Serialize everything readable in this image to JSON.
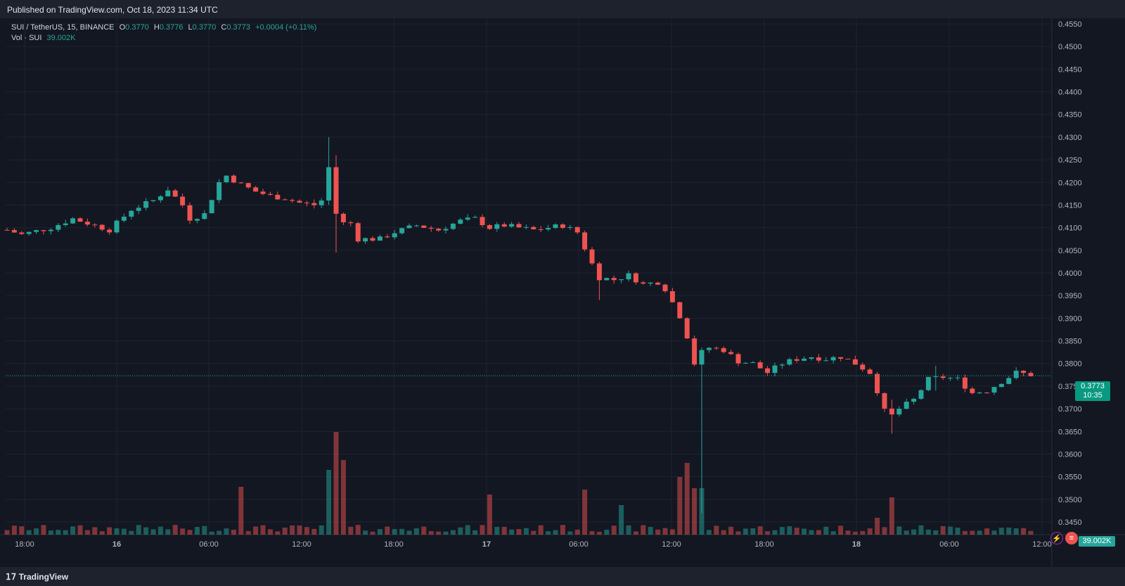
{
  "header": {
    "published": "Published on TradingView.com, Oct 18, 2023 11:34 UTC"
  },
  "legend": {
    "symbol": "SUI / TetherUS, 15, BINANCE",
    "o_label": "O",
    "o": "0.3770",
    "h_label": "H",
    "h": "0.3776",
    "l_label": "L",
    "l": "0.3770",
    "c_label": "C",
    "c": "0.3773",
    "change": "+0.0004 (+0.11%)",
    "vol_label": "Vol · SUI",
    "vol_value": "39.002K"
  },
  "price_tag": {
    "price": "0.3773",
    "countdown": "10:35"
  },
  "vol_tag": "39.002K",
  "footer": {
    "brand": "TradingView"
  },
  "icons": {
    "flash": "lightning-icon",
    "flag": "us-flag-icon"
  },
  "colors": {
    "up": "#26a69a",
    "down": "#ef5350",
    "background": "#131722",
    "grid": "#1f2330"
  },
  "chart_data": {
    "type": "candlestick",
    "interval": "15",
    "symbol": "SUI / TetherUS",
    "exchange": "BINANCE",
    "last_price": 0.3773,
    "y_ticks": [
      "0.4550",
      "0.4500",
      "0.4450",
      "0.4400",
      "0.4350",
      "0.4300",
      "0.4250",
      "0.4200",
      "0.4150",
      "0.4100",
      "0.4050",
      "0.4000",
      "0.3950",
      "0.3900",
      "0.3850",
      "0.3800",
      "0.3750",
      "0.3700",
      "0.3650",
      "0.3600",
      "0.3550",
      "0.3500",
      "0.3450"
    ],
    "y_range": [
      0.3445,
      0.456
    ],
    "x_ticks": [
      "18:00",
      "16",
      "06:00",
      "12:00",
      "18:00",
      "17",
      "06:00",
      "12:00",
      "18:00",
      "18",
      "06:00",
      "12:00"
    ],
    "close_path": [
      {
        "t": 0,
        "p": 0.4095
      },
      {
        "t": 2,
        "p": 0.4085
      },
      {
        "t": 6,
        "p": 0.41
      },
      {
        "t": 9,
        "p": 0.412
      },
      {
        "t": 12,
        "p": 0.4105
      },
      {
        "t": 14,
        "p": 0.4095
      },
      {
        "t": 17,
        "p": 0.414
      },
      {
        "t": 20,
        "p": 0.416
      },
      {
        "t": 22,
        "p": 0.4185
      },
      {
        "t": 24,
        "p": 0.415
      },
      {
        "t": 25,
        "p": 0.412
      },
      {
        "t": 27,
        "p": 0.413
      },
      {
        "t": 29,
        "p": 0.42
      },
      {
        "t": 30,
        "p": 0.4215
      },
      {
        "t": 32,
        "p": 0.4195
      },
      {
        "t": 34,
        "p": 0.418
      },
      {
        "t": 36,
        "p": 0.417
      },
      {
        "t": 38,
        "p": 0.4165
      },
      {
        "t": 40,
        "p": 0.4155
      },
      {
        "t": 42,
        "p": 0.415
      },
      {
        "t": 43,
        "p": 0.416
      },
      {
        "t": 44.3,
        "p": 0.4255
      },
      {
        "t": 44.8,
        "p": 0.414
      },
      {
        "t": 45.5,
        "p": 0.411
      },
      {
        "t": 47,
        "p": 0.411
      },
      {
        "t": 48,
        "p": 0.4075
      },
      {
        "t": 51,
        "p": 0.4075
      },
      {
        "t": 53,
        "p": 0.409
      },
      {
        "t": 56,
        "p": 0.4105
      },
      {
        "t": 59,
        "p": 0.4095
      },
      {
        "t": 62,
        "p": 0.4115
      },
      {
        "t": 64,
        "p": 0.412
      },
      {
        "t": 66,
        "p": 0.41
      },
      {
        "t": 68,
        "p": 0.4105
      },
      {
        "t": 70,
        "p": 0.41
      },
      {
        "t": 72,
        "p": 0.4095
      },
      {
        "t": 74,
        "p": 0.41
      },
      {
        "t": 76,
        "p": 0.4105
      },
      {
        "t": 78,
        "p": 0.409
      },
      {
        "t": 79,
        "p": 0.4055
      },
      {
        "t": 80,
        "p": 0.402
      },
      {
        "t": 81,
        "p": 0.399
      },
      {
        "t": 83,
        "p": 0.3985
      },
      {
        "t": 85,
        "p": 0.3995
      },
      {
        "t": 87,
        "p": 0.3975
      },
      {
        "t": 89,
        "p": 0.398
      },
      {
        "t": 90,
        "p": 0.3965
      },
      {
        "t": 91,
        "p": 0.3935
      },
      {
        "t": 92,
        "p": 0.3905
      },
      {
        "t": 93,
        "p": 0.386
      },
      {
        "t": 94,
        "p": 0.38
      },
      {
        "t": 95,
        "p": 0.3825
      },
      {
        "t": 96,
        "p": 0.3835
      },
      {
        "t": 98,
        "p": 0.383
      },
      {
        "t": 100,
        "p": 0.3805
      },
      {
        "t": 102,
        "p": 0.38
      },
      {
        "t": 104,
        "p": 0.378
      },
      {
        "t": 106,
        "p": 0.38
      },
      {
        "t": 108,
        "p": 0.381
      },
      {
        "t": 110,
        "p": 0.3815
      },
      {
        "t": 112,
        "p": 0.381
      },
      {
        "t": 114,
        "p": 0.3815
      },
      {
        "t": 116,
        "p": 0.38
      },
      {
        "t": 118,
        "p": 0.378
      },
      {
        "t": 119,
        "p": 0.374
      },
      {
        "t": 120,
        "p": 0.3695
      },
      {
        "t": 121,
        "p": 0.3685
      },
      {
        "t": 122,
        "p": 0.37
      },
      {
        "t": 124,
        "p": 0.372
      },
      {
        "t": 126,
        "p": 0.3765
      },
      {
        "t": 128,
        "p": 0.377
      },
      {
        "t": 130,
        "p": 0.3765
      },
      {
        "t": 132,
        "p": 0.3735
      },
      {
        "t": 134,
        "p": 0.374
      },
      {
        "t": 136,
        "p": 0.376
      },
      {
        "t": 138,
        "p": 0.378
      },
      {
        "t": 140,
        "p": 0.3775
      }
    ],
    "spikes": [
      {
        "t": 44.2,
        "high": 0.43,
        "low": 0.415
      },
      {
        "t": 45.0,
        "high": 0.426,
        "low": 0.4045
      },
      {
        "t": 80.5,
        "high": 0.401,
        "low": 0.394
      },
      {
        "t": 94.5,
        "high": 0.388,
        "low": 0.372
      },
      {
        "t": 95.0,
        "high": 0.381,
        "low": 0.347
      },
      {
        "t": 121.0,
        "high": 0.372,
        "low": 0.3645
      },
      {
        "t": 126.5,
        "high": 0.3795,
        "low": 0.374
      }
    ],
    "volume_spikes": [
      {
        "t": 44.2,
        "v": 92
      },
      {
        "t": 44.6,
        "v": 146
      },
      {
        "t": 45.8,
        "v": 106
      },
      {
        "t": 32.0,
        "v": 68
      },
      {
        "t": 79.0,
        "v": 64
      },
      {
        "t": 66.0,
        "v": 57
      },
      {
        "t": 93.0,
        "v": 102
      },
      {
        "t": 94.0,
        "v": 82
      },
      {
        "t": 95.0,
        "v": 186
      },
      {
        "t": 94.6,
        "v": 66
      },
      {
        "t": 92.0,
        "v": 82
      },
      {
        "t": 121.0,
        "v": 53
      },
      {
        "t": 119.0,
        "v": 24
      },
      {
        "t": 84.0,
        "v": 42
      }
    ]
  }
}
